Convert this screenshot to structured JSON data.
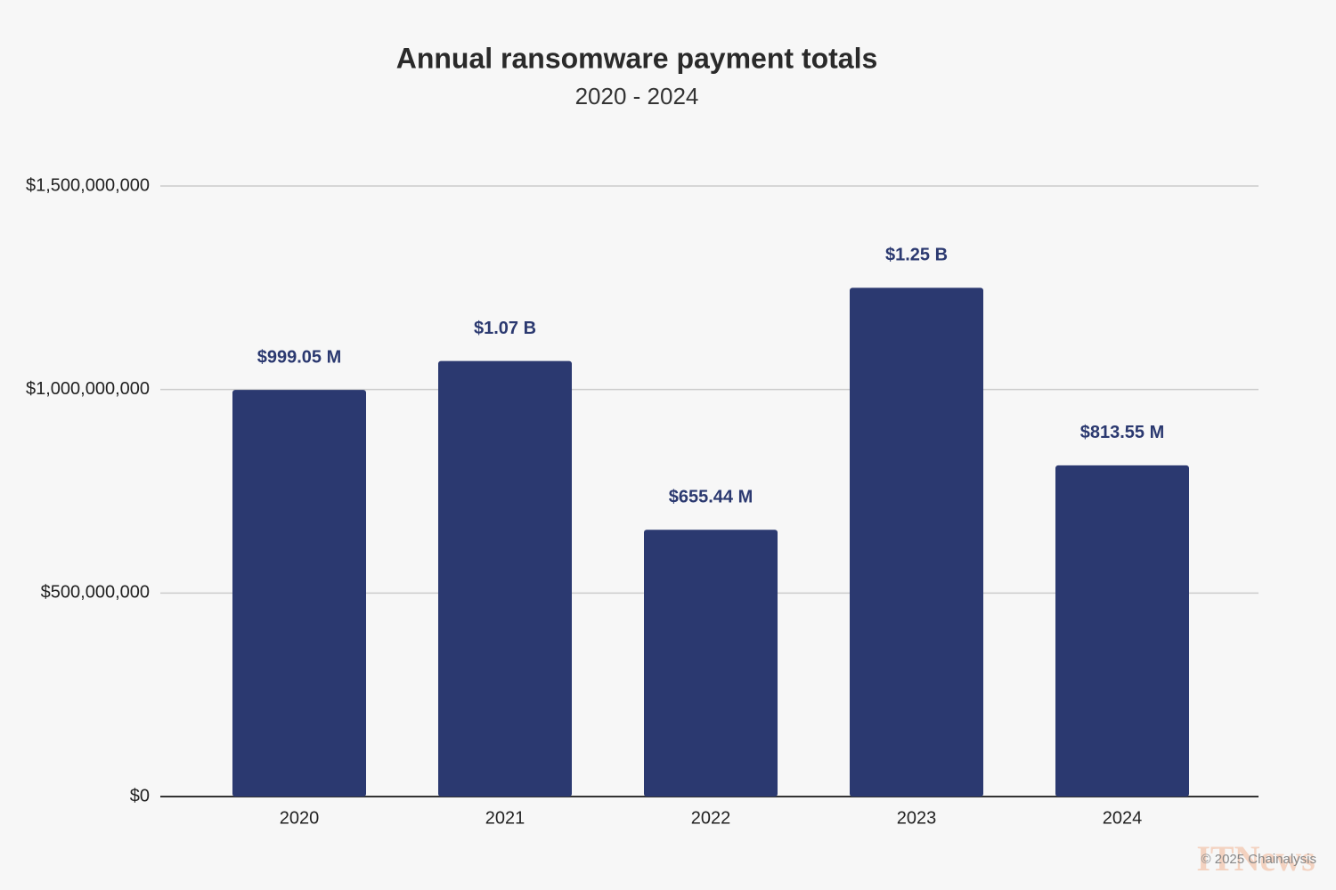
{
  "chart_data": {
    "type": "bar",
    "title": "Annual ransomware payment totals",
    "subtitle": "2020 - 2024",
    "categories": [
      "2020",
      "2021",
      "2022",
      "2023",
      "2024"
    ],
    "values": [
      999050000,
      1070000000,
      655440000,
      1250000000,
      813550000
    ],
    "value_labels": [
      "$999.05 M",
      "$1.07 B",
      "$655.44 M",
      "$1.25 B",
      "$813.55 M"
    ],
    "color": "#2b3970",
    "ylim": [
      0,
      1500000000
    ],
    "yticks": [
      {
        "value": 0,
        "label": "$0"
      },
      {
        "value": 500000000,
        "label": "$500,000,000"
      },
      {
        "value": 1000000000,
        "label": "$1,000,000,000"
      },
      {
        "value": 1500000000,
        "label": "$1,500,000,000"
      }
    ],
    "grid": true,
    "footer": "© 2025 Chainalysis",
    "watermark": "ITNews"
  }
}
